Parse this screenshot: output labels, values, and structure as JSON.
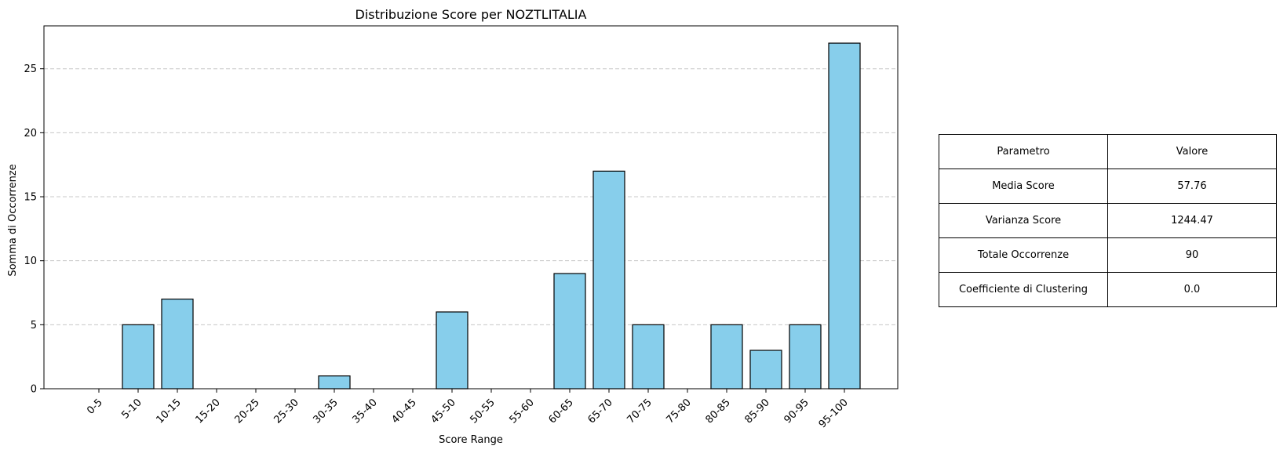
{
  "chart_data": {
    "type": "bar",
    "title": "Distribuzione Score per NOZTLITALIA",
    "xlabel": "Score Range",
    "ylabel": "Somma di Occorrenze",
    "categories": [
      "0-5",
      "5-10",
      "10-15",
      "15-20",
      "20-25",
      "25-30",
      "30-35",
      "35-40",
      "40-45",
      "45-50",
      "50-55",
      "55-60",
      "60-65",
      "65-70",
      "70-75",
      "75-80",
      "80-85",
      "85-90",
      "90-95",
      "95-100"
    ],
    "values": [
      0,
      5,
      7,
      0,
      0,
      0,
      1,
      0,
      0,
      6,
      0,
      0,
      9,
      17,
      5,
      0,
      5,
      3,
      5,
      27
    ],
    "ylim": [
      0,
      28.35
    ],
    "yticks": [
      0,
      5,
      10,
      15,
      20,
      25
    ],
    "grid": "y-dashed",
    "bar_color": "#87CEEB",
    "edge_color": "#000000",
    "xtick_rotation": 45
  },
  "stats_table": {
    "header": [
      "Parametro",
      "Valore"
    ],
    "rows": [
      [
        "Media Score",
        "57.76"
      ],
      [
        "Varianza Score",
        "1244.47"
      ],
      [
        "Totale Occorrenze",
        "90"
      ],
      [
        "Coefficiente di Clustering",
        "0.0"
      ]
    ]
  }
}
